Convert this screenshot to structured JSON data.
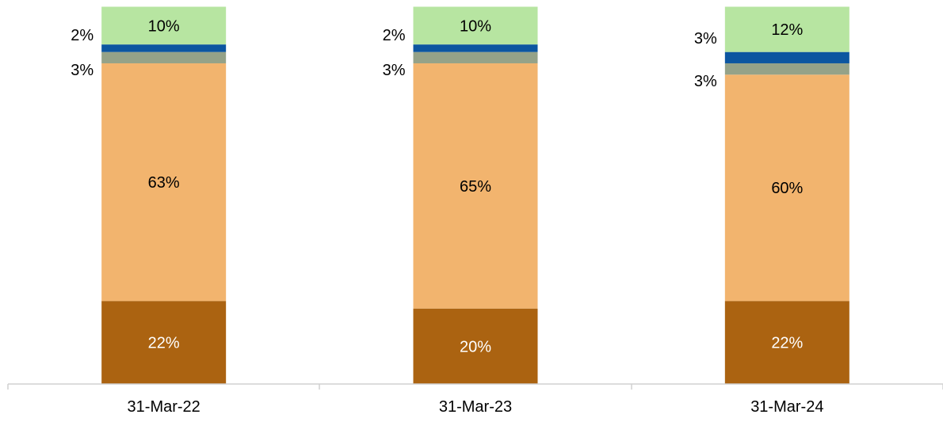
{
  "chart_data": {
    "type": "bar",
    "stacked": true,
    "categories": [
      "31-Mar-22",
      "31-Mar-23",
      "31-Mar-24"
    ],
    "ylim": [
      0,
      100
    ],
    "grid": false,
    "legend": "none",
    "series": [
      {
        "values": [
          22,
          20,
          22
        ],
        "labels": [
          "22%",
          "20%",
          "22%"
        ],
        "color": "#ab6311",
        "label_color": "#ffffff"
      },
      {
        "values": [
          63,
          65,
          60
        ],
        "labels": [
          "63%",
          "65%",
          "60%"
        ],
        "color": "#f2b46e",
        "label_color": "#000000"
      },
      {
        "values": [
          3,
          3,
          3
        ],
        "labels": [
          "3%",
          "3%",
          "3%"
        ],
        "color": "#95a288",
        "label_color": "#000000",
        "label_outside": true
      },
      {
        "values": [
          2,
          2,
          3
        ],
        "labels": [
          "2%",
          "2%",
          "3%"
        ],
        "color": "#0c56a0",
        "label_color": "#000000",
        "label_outside": true
      },
      {
        "values": [
          10,
          10,
          12
        ],
        "labels": [
          "10%",
          "10%",
          "12%"
        ],
        "color": "#b7e5a1",
        "label_color": "#000000"
      }
    ]
  }
}
